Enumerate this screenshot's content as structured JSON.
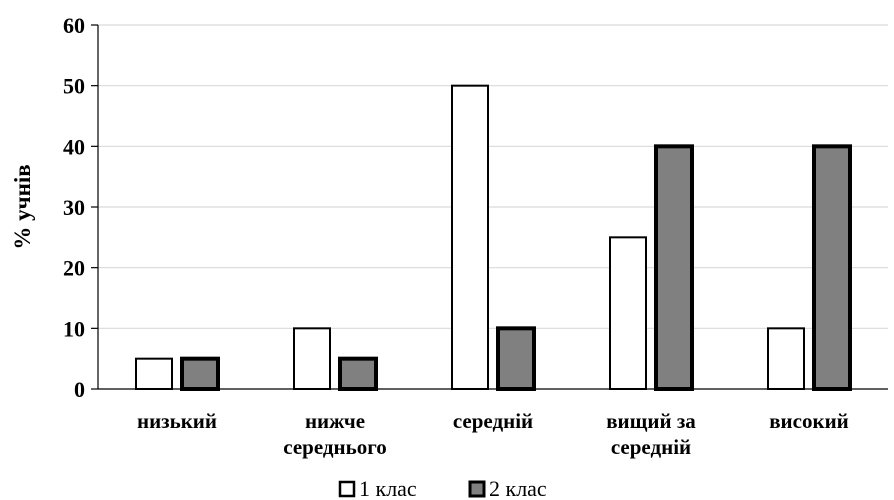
{
  "chart_data": {
    "type": "bar",
    "categories": [
      "низький",
      "нижче середнього",
      "середній",
      "вищий за середній",
      "високий"
    ],
    "category_lines": [
      [
        "низький"
      ],
      [
        "нижче",
        "середнього"
      ],
      [
        "середній"
      ],
      [
        "вищий за",
        "середній"
      ],
      [
        "високий"
      ]
    ],
    "series": [
      {
        "name": "1 клас",
        "values": [
          5,
          10,
          50,
          25,
          10
        ],
        "color": "#ffffff"
      },
      {
        "name": "2 клас",
        "values": [
          5,
          5,
          10,
          40,
          40
        ],
        "color": "#808080"
      }
    ],
    "title": "",
    "xlabel": "",
    "ylabel": "% учнів",
    "ylim": [
      0,
      60
    ],
    "yticks": [
      0,
      10,
      20,
      30,
      40,
      50,
      60
    ],
    "grid": true,
    "legend": "bottom"
  },
  "colors": {
    "grid": "#d9d9d9",
    "axis": "#000000",
    "bar_stroke": "#000000"
  }
}
